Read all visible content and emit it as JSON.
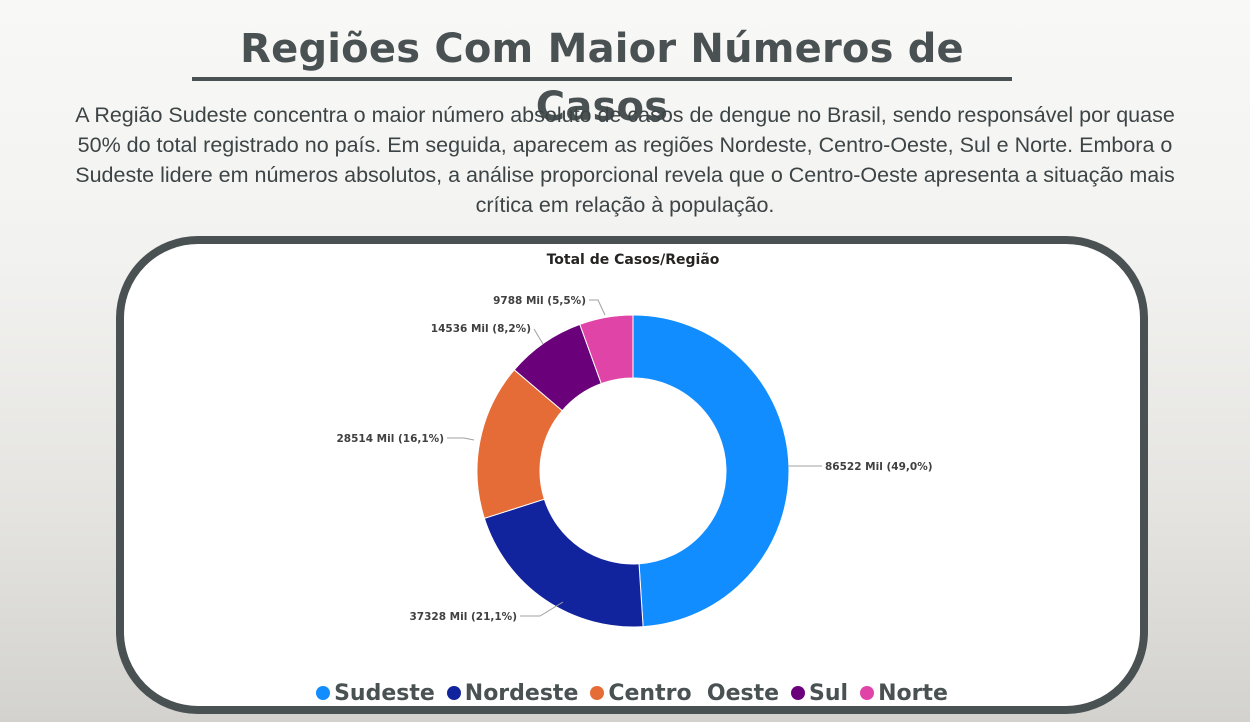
{
  "header": {
    "title": "Regiões Com Maior Números de Casos",
    "description": "A Região Sudeste concentra o maior número absoluto de casos de dengue no Brasil, sendo responsável por quase 50% do total registrado no país. Em seguida, aparecem as regiões Nordeste, Centro-Oeste, Sul e Norte. Embora o Sudeste lidere em números absolutos, a análise proporcional revela que o Centro-Oeste apresenta a situação mais crítica em relação à população."
  },
  "chart_data": {
    "type": "pie",
    "subtype": "donut",
    "title": "Total de Casos/Região",
    "categories": [
      "Sudeste",
      "Nordeste",
      "Centro  Oeste",
      "Sul",
      "Norte"
    ],
    "values": [
      86522,
      37328,
      28514,
      14536,
      9788
    ],
    "data_labels": [
      "86522 Mil (49,0%)",
      "37328 Mil (21,1%)",
      "28514 Mil (16,1%)",
      "14536 Mil (8,2%)",
      "9788 Mil (5,5%)"
    ],
    "colors": [
      "#118dff",
      "#12239e",
      "#e66c37",
      "#6b007b",
      "#e044a7"
    ],
    "legend_position": "bottom"
  }
}
